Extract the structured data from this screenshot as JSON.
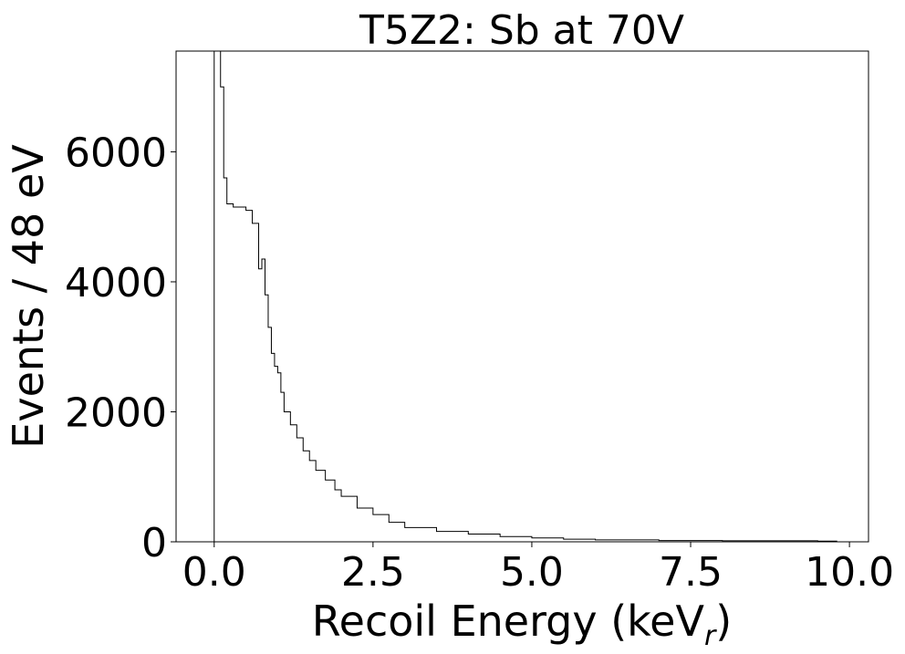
{
  "chart_data": {
    "type": "histogram",
    "title": "T5Z2: Sb at 70V",
    "xlabel": "Recoil Energy (keV",
    "xlabel_sub": "r",
    "xlabel_close": ")",
    "ylabel": "Events / 48 eV",
    "xlim": [
      -0.6,
      10.3
    ],
    "ylim": [
      0,
      7550
    ],
    "xticks": [
      {
        "value": 0,
        "label": "0.0"
      },
      {
        "value": 2.5,
        "label": "2.5"
      },
      {
        "value": 5,
        "label": "5.0"
      },
      {
        "value": 7.5,
        "label": "7.5"
      },
      {
        "value": 10,
        "label": "10.0"
      }
    ],
    "yticks": [
      {
        "value": 0,
        "label": "0"
      },
      {
        "value": 2000,
        "label": "2000"
      },
      {
        "value": 4000,
        "label": "4000"
      },
      {
        "value": 6000,
        "label": "6000"
      }
    ],
    "grid": false,
    "line_color": "#000000",
    "series": [
      {
        "x": [
          0.0,
          0.05,
          0.1,
          0.15,
          0.2,
          0.3,
          0.4,
          0.5,
          0.6,
          0.7,
          0.75,
          0.8,
          0.85,
          0.9,
          0.95,
          1.0,
          1.05,
          1.1,
          1.2,
          1.3,
          1.4,
          1.5,
          1.6,
          1.75,
          1.9,
          2.0,
          2.25,
          2.5,
          2.75,
          3.0,
          3.5,
          4.0,
          4.5,
          5.0,
          5.5,
          6.0,
          7.0,
          8.0,
          9.0,
          9.5,
          9.8
        ],
        "y": [
          7550,
          7550,
          7000,
          5600,
          5200,
          5150,
          5150,
          5100,
          4900,
          4200,
          4350,
          3800,
          3300,
          2900,
          2700,
          2600,
          2300,
          2000,
          1800,
          1600,
          1400,
          1250,
          1100,
          950,
          800,
          700,
          520,
          420,
          300,
          220,
          160,
          120,
          80,
          60,
          40,
          30,
          20,
          15,
          15,
          10,
          0
        ]
      }
    ]
  }
}
